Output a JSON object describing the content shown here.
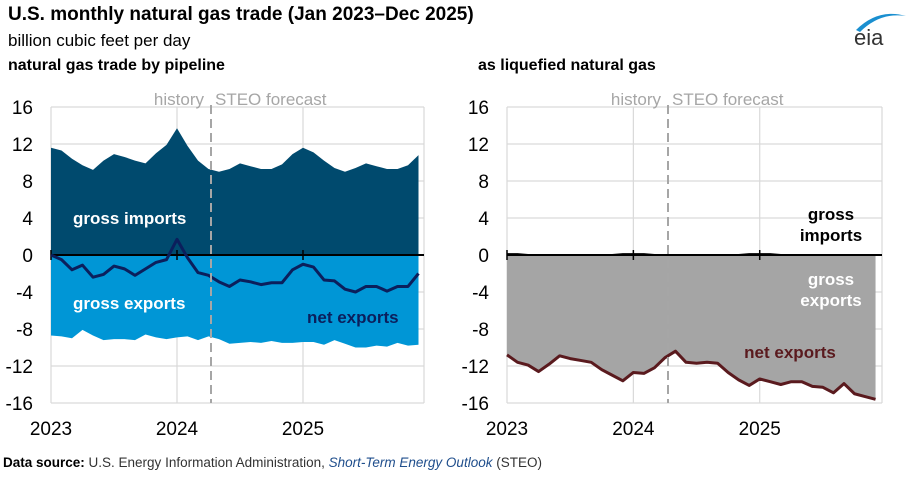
{
  "header": {
    "title": "U.S. monthly natural gas trade (Jan 2023–Dec 2025)",
    "subtitle": "billion cubic feet per day"
  },
  "logo": {
    "text": "eia"
  },
  "source": {
    "label": "Data source:",
    "text1": " U.S. Energy Information Administration, ",
    "italic": "Short-Term Energy Outlook",
    "text2": " (STEO)"
  },
  "colors": {
    "pipeline_imports": "#004a6e",
    "pipeline_exports": "#0096d6",
    "pipeline_net": "#0b1f5c",
    "lng_exports": "#a5a5a5",
    "lng_net": "#5a1a1e",
    "divider": "#a6a6a6"
  },
  "chart_data": [
    {
      "type": "area",
      "title": "natural gas trade by pipeline",
      "ylim": [
        -16,
        16
      ],
      "yticks": [
        "16",
        "12",
        "8",
        "4",
        "0",
        "-4",
        "-8",
        "-12",
        "-16"
      ],
      "xticks": [
        "2023",
        "2024",
        "2025"
      ],
      "x_start": "Jan 2023",
      "x_end": "Dec 2025",
      "grid": true,
      "divider": {
        "left_label": "history",
        "right_label": "STEO forecast",
        "after": "Apr 2024"
      },
      "series": [
        {
          "name": "gross imports",
          "kind": "area",
          "values": [
            11.6,
            11.3,
            10.4,
            9.7,
            9.2,
            10.2,
            10.9,
            10.6,
            10.2,
            9.9,
            11.0,
            11.9,
            13.7,
            11.8,
            10.2,
            9.3,
            9.0,
            9.3,
            9.9,
            9.6,
            9.3,
            9.3,
            9.8,
            10.9,
            11.6,
            11.1,
            10.2,
            9.4,
            9.0,
            9.4,
            9.9,
            9.6,
            9.3,
            9.3,
            9.7,
            10.8
          ]
        },
        {
          "name": "gross exports",
          "kind": "area",
          "values": [
            -8.7,
            -8.8,
            -9.0,
            -8.1,
            -8.7,
            -9.2,
            -9.1,
            -9.1,
            -9.2,
            -8.6,
            -8.9,
            -9.1,
            -8.9,
            -8.8,
            -9.2,
            -8.8,
            -9.1,
            -9.6,
            -9.5,
            -9.4,
            -9.5,
            -9.3,
            -9.5,
            -9.5,
            -9.4,
            -9.4,
            -9.7,
            -9.2,
            -9.6,
            -10.0,
            -10.0,
            -9.8,
            -9.9,
            -9.5,
            -9.8,
            -9.7
          ]
        },
        {
          "name": "net exports",
          "kind": "line",
          "values": [
            0.0,
            -0.5,
            -1.6,
            -1.1,
            -2.4,
            -2.1,
            -1.2,
            -1.5,
            -2.2,
            -1.5,
            -0.8,
            -0.5,
            1.7,
            -0.3,
            -1.9,
            -2.2,
            -2.9,
            -3.4,
            -2.7,
            -2.9,
            -3.2,
            -3.0,
            -3.0,
            -1.6,
            -1.0,
            -1.3,
            -2.7,
            -2.8,
            -3.7,
            -4.0,
            -3.4,
            -3.4,
            -3.9,
            -3.4,
            -3.4,
            -2.0
          ]
        }
      ]
    },
    {
      "type": "area",
      "title": "as liquefied natural gas",
      "ylim": [
        -16,
        16
      ],
      "yticks": [
        "16",
        "12",
        "8",
        "4",
        "0",
        "-4",
        "-8",
        "-12",
        "-16"
      ],
      "xticks": [
        "2023",
        "2024",
        "2025"
      ],
      "x_start": "Jan 2023",
      "x_end": "Dec 2025",
      "grid": true,
      "divider": {
        "left_label": "history",
        "right_label": "STEO forecast",
        "after": "Apr 2024"
      },
      "series": [
        {
          "name": "gross imports",
          "kind": "area",
          "values": [
            0.1,
            0.1,
            0.0,
            0.0,
            0.0,
            0.0,
            0.0,
            0.0,
            0.0,
            0.0,
            0.0,
            0.1,
            0.1,
            0.1,
            0.0,
            0.0,
            0.0,
            0.0,
            0.0,
            0.0,
            0.0,
            0.0,
            0.0,
            0.1,
            0.1,
            0.1,
            0.0,
            0.0,
            0.0,
            0.0,
            0.0,
            0.0,
            0.0,
            0.0,
            0.0,
            0.0
          ]
        },
        {
          "name": "gross exports",
          "kind": "area",
          "values": [
            -10.9,
            -11.7,
            -11.9,
            -12.6,
            -11.8,
            -10.9,
            -11.2,
            -11.4,
            -11.6,
            -12.4,
            -13.0,
            -13.7,
            -12.8,
            -12.9,
            -12.2,
            -11.1,
            -10.4,
            -11.6,
            -11.7,
            -11.6,
            -11.7,
            -12.7,
            -13.5,
            -14.2,
            -13.5,
            -13.8,
            -14.0,
            -13.7,
            -13.7,
            -14.2,
            -14.3,
            -14.9,
            -13.9,
            -15.0,
            -15.3,
            -15.6
          ]
        },
        {
          "name": "net exports",
          "kind": "line",
          "values": [
            -10.8,
            -11.6,
            -11.9,
            -12.6,
            -11.8,
            -10.9,
            -11.2,
            -11.4,
            -11.6,
            -12.4,
            -13.0,
            -13.6,
            -12.7,
            -12.8,
            -12.2,
            -11.1,
            -10.4,
            -11.6,
            -11.7,
            -11.6,
            -11.7,
            -12.7,
            -13.5,
            -14.1,
            -13.4,
            -13.7,
            -14.0,
            -13.7,
            -13.7,
            -14.2,
            -14.3,
            -14.9,
            -13.9,
            -15.0,
            -15.3,
            -15.6
          ]
        }
      ]
    }
  ]
}
